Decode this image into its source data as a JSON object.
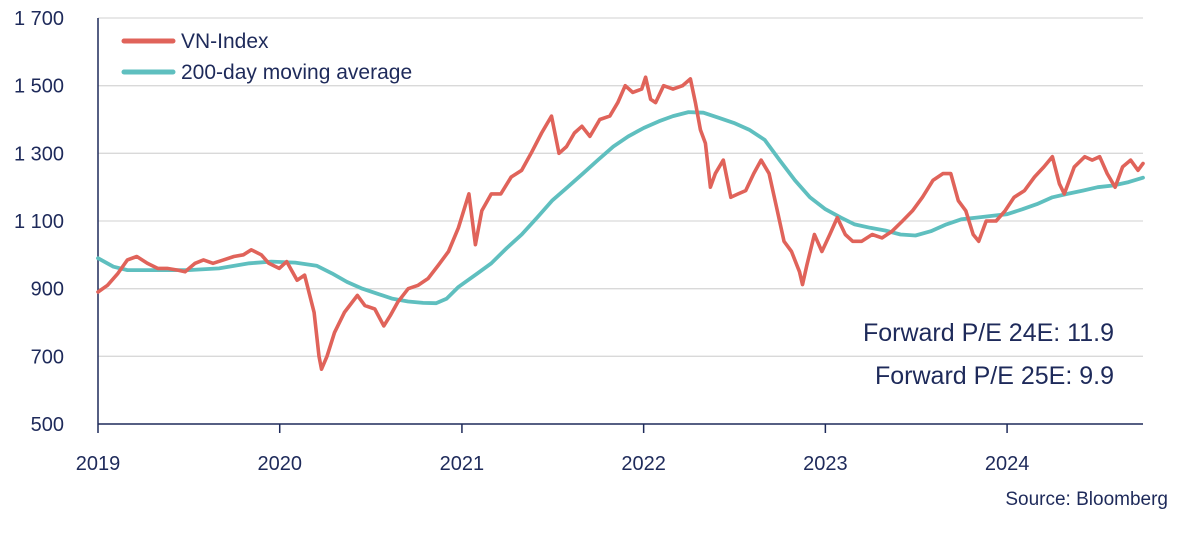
{
  "chart_data": {
    "type": "line",
    "title": "",
    "xlabel": "",
    "ylabel": "",
    "ylim": [
      500,
      1700
    ],
    "xlim": [
      "2019-01-01",
      "2024-09-30"
    ],
    "grid": "horizontal",
    "legend_position": "top-left",
    "y_ticks": [
      {
        "value": 500,
        "label": "500"
      },
      {
        "value": 700,
        "label": "700"
      },
      {
        "value": 900,
        "label": "900"
      },
      {
        "value": 1100,
        "label": "1 100"
      },
      {
        "value": 1300,
        "label": "1 300"
      },
      {
        "value": 1500,
        "label": "1 500"
      },
      {
        "value": 1700,
        "label": "1 700"
      }
    ],
    "x_ticks": [
      {
        "value": "2019-01-01",
        "label": "2019"
      },
      {
        "value": "2020-01-01",
        "label": "2020"
      },
      {
        "value": "2021-01-01",
        "label": "2021"
      },
      {
        "value": "2022-01-01",
        "label": "2022"
      },
      {
        "value": "2023-01-01",
        "label": "2023"
      },
      {
        "value": "2024-01-01",
        "label": "2024"
      }
    ],
    "series": [
      {
        "name": "VN-Index",
        "color": "#e0635a",
        "points": [
          [
            "2019-01-01",
            890
          ],
          [
            "2019-01-20",
            910
          ],
          [
            "2019-02-10",
            945
          ],
          [
            "2019-03-01",
            985
          ],
          [
            "2019-03-20",
            995
          ],
          [
            "2019-04-10",
            975
          ],
          [
            "2019-05-01",
            960
          ],
          [
            "2019-05-20",
            960
          ],
          [
            "2019-06-10",
            955
          ],
          [
            "2019-06-25",
            950
          ],
          [
            "2019-07-15",
            975
          ],
          [
            "2019-08-01",
            985
          ],
          [
            "2019-08-20",
            975
          ],
          [
            "2019-09-10",
            985
          ],
          [
            "2019-10-01",
            995
          ],
          [
            "2019-10-20",
            1000
          ],
          [
            "2019-11-05",
            1015
          ],
          [
            "2019-11-25",
            1000
          ],
          [
            "2019-12-10",
            975
          ],
          [
            "2019-12-31",
            960
          ],
          [
            "2020-01-15",
            980
          ],
          [
            "2020-02-05",
            925
          ],
          [
            "2020-02-20",
            940
          ],
          [
            "2020-03-10",
            830
          ],
          [
            "2020-03-20",
            700
          ],
          [
            "2020-03-25",
            662
          ],
          [
            "2020-04-05",
            700
          ],
          [
            "2020-04-20",
            770
          ],
          [
            "2020-05-10",
            830
          ],
          [
            "2020-06-05",
            880
          ],
          [
            "2020-06-20",
            850
          ],
          [
            "2020-07-10",
            840
          ],
          [
            "2020-07-28",
            790
          ],
          [
            "2020-08-10",
            820
          ],
          [
            "2020-08-25",
            860
          ],
          [
            "2020-09-15",
            900
          ],
          [
            "2020-10-05",
            910
          ],
          [
            "2020-10-25",
            930
          ],
          [
            "2020-11-15",
            970
          ],
          [
            "2020-12-05",
            1010
          ],
          [
            "2020-12-25",
            1080
          ],
          [
            "2021-01-15",
            1180
          ],
          [
            "2021-01-28",
            1030
          ],
          [
            "2021-02-10",
            1130
          ],
          [
            "2021-03-01",
            1180
          ],
          [
            "2021-03-20",
            1180
          ],
          [
            "2021-04-10",
            1230
          ],
          [
            "2021-05-01",
            1250
          ],
          [
            "2021-05-20",
            1300
          ],
          [
            "2021-06-10",
            1360
          ],
          [
            "2021-06-30",
            1410
          ],
          [
            "2021-07-15",
            1300
          ],
          [
            "2021-07-30",
            1320
          ],
          [
            "2021-08-15",
            1360
          ],
          [
            "2021-08-30",
            1380
          ],
          [
            "2021-09-15",
            1350
          ],
          [
            "2021-10-05",
            1400
          ],
          [
            "2021-10-25",
            1410
          ],
          [
            "2021-11-10",
            1450
          ],
          [
            "2021-11-25",
            1500
          ],
          [
            "2021-12-10",
            1480
          ],
          [
            "2021-12-28",
            1490
          ],
          [
            "2022-01-05",
            1525
          ],
          [
            "2022-01-15",
            1460
          ],
          [
            "2022-01-25",
            1450
          ],
          [
            "2022-02-10",
            1500
          ],
          [
            "2022-03-01",
            1490
          ],
          [
            "2022-03-20",
            1500
          ],
          [
            "2022-04-05",
            1520
          ],
          [
            "2022-04-15",
            1450
          ],
          [
            "2022-04-25",
            1370
          ],
          [
            "2022-05-05",
            1330
          ],
          [
            "2022-05-15",
            1200
          ],
          [
            "2022-05-25",
            1240
          ],
          [
            "2022-06-10",
            1280
          ],
          [
            "2022-06-25",
            1170
          ],
          [
            "2022-07-10",
            1180
          ],
          [
            "2022-07-25",
            1190
          ],
          [
            "2022-08-10",
            1240
          ],
          [
            "2022-08-25",
            1280
          ],
          [
            "2022-09-10",
            1240
          ],
          [
            "2022-09-25",
            1140
          ],
          [
            "2022-10-10",
            1040
          ],
          [
            "2022-10-25",
            1010
          ],
          [
            "2022-11-10",
            950
          ],
          [
            "2022-11-16",
            912
          ],
          [
            "2022-11-25",
            970
          ],
          [
            "2022-12-10",
            1060
          ],
          [
            "2022-12-25",
            1010
          ],
          [
            "2023-01-10",
            1060
          ],
          [
            "2023-01-25",
            1110
          ],
          [
            "2023-02-10",
            1060
          ],
          [
            "2023-02-25",
            1040
          ],
          [
            "2023-03-15",
            1040
          ],
          [
            "2023-04-05",
            1060
          ],
          [
            "2023-04-25",
            1050
          ],
          [
            "2023-05-15",
            1070
          ],
          [
            "2023-06-05",
            1100
          ],
          [
            "2023-06-25",
            1130
          ],
          [
            "2023-07-15",
            1170
          ],
          [
            "2023-08-05",
            1220
          ],
          [
            "2023-08-25",
            1240
          ],
          [
            "2023-09-10",
            1240
          ],
          [
            "2023-09-25",
            1160
          ],
          [
            "2023-10-10",
            1130
          ],
          [
            "2023-10-25",
            1060
          ],
          [
            "2023-11-05",
            1040
          ],
          [
            "2023-11-20",
            1100
          ],
          [
            "2023-12-10",
            1100
          ],
          [
            "2023-12-28",
            1130
          ],
          [
            "2024-01-15",
            1170
          ],
          [
            "2024-02-05",
            1190
          ],
          [
            "2024-02-25",
            1230
          ],
          [
            "2024-03-15",
            1260
          ],
          [
            "2024-04-01",
            1290
          ],
          [
            "2024-04-15",
            1210
          ],
          [
            "2024-04-25",
            1180
          ],
          [
            "2024-05-15",
            1260
          ],
          [
            "2024-06-05",
            1290
          ],
          [
            "2024-06-20",
            1280
          ],
          [
            "2024-07-05",
            1290
          ],
          [
            "2024-07-20",
            1240
          ],
          [
            "2024-08-05",
            1200
          ],
          [
            "2024-08-20",
            1260
          ],
          [
            "2024-09-05",
            1280
          ],
          [
            "2024-09-20",
            1250
          ],
          [
            "2024-09-30",
            1270
          ]
        ]
      },
      {
        "name": "200-day moving average",
        "color": "#5fbfbf",
        "points": [
          [
            "2019-01-01",
            990
          ],
          [
            "2019-02-01",
            965
          ],
          [
            "2019-03-01",
            955
          ],
          [
            "2019-05-01",
            955
          ],
          [
            "2019-07-01",
            955
          ],
          [
            "2019-09-01",
            960
          ],
          [
            "2019-11-01",
            975
          ],
          [
            "2019-12-15",
            980
          ],
          [
            "2020-02-01",
            977
          ],
          [
            "2020-03-15",
            968
          ],
          [
            "2020-04-15",
            945
          ],
          [
            "2020-05-15",
            920
          ],
          [
            "2020-06-15",
            900
          ],
          [
            "2020-07-15",
            885
          ],
          [
            "2020-08-15",
            870
          ],
          [
            "2020-09-15",
            862
          ],
          [
            "2020-10-15",
            858
          ],
          [
            "2020-11-10",
            857
          ],
          [
            "2020-12-01",
            870
          ],
          [
            "2020-12-25",
            905
          ],
          [
            "2021-02-01",
            945
          ],
          [
            "2021-03-01",
            975
          ],
          [
            "2021-04-01",
            1020
          ],
          [
            "2021-05-01",
            1060
          ],
          [
            "2021-06-01",
            1110
          ],
          [
            "2021-07-01",
            1160
          ],
          [
            "2021-08-01",
            1200
          ],
          [
            "2021-09-01",
            1240
          ],
          [
            "2021-10-01",
            1280
          ],
          [
            "2021-11-01",
            1320
          ],
          [
            "2021-12-01",
            1350
          ],
          [
            "2022-01-01",
            1375
          ],
          [
            "2022-02-01",
            1395
          ],
          [
            "2022-03-01",
            1410
          ],
          [
            "2022-04-01",
            1422
          ],
          [
            "2022-05-01",
            1420
          ],
          [
            "2022-06-01",
            1405
          ],
          [
            "2022-07-01",
            1390
          ],
          [
            "2022-08-01",
            1370
          ],
          [
            "2022-09-01",
            1340
          ],
          [
            "2022-10-01",
            1280
          ],
          [
            "2022-11-01",
            1220
          ],
          [
            "2022-12-01",
            1170
          ],
          [
            "2023-01-01",
            1135
          ],
          [
            "2023-02-01",
            1110
          ],
          [
            "2023-03-01",
            1090
          ],
          [
            "2023-04-01",
            1080
          ],
          [
            "2023-05-01",
            1072
          ],
          [
            "2023-06-01",
            1060
          ],
          [
            "2023-07-01",
            1057
          ],
          [
            "2023-08-01",
            1070
          ],
          [
            "2023-09-01",
            1090
          ],
          [
            "2023-10-01",
            1105
          ],
          [
            "2023-11-01",
            1110
          ],
          [
            "2023-12-01",
            1115
          ],
          [
            "2024-01-01",
            1120
          ],
          [
            "2024-02-01",
            1135
          ],
          [
            "2024-03-01",
            1150
          ],
          [
            "2024-04-01",
            1170
          ],
          [
            "2024-05-01",
            1180
          ],
          [
            "2024-06-01",
            1190
          ],
          [
            "2024-07-01",
            1200
          ],
          [
            "2024-08-01",
            1205
          ],
          [
            "2024-09-01",
            1215
          ],
          [
            "2024-09-30",
            1228
          ]
        ]
      }
    ],
    "annotations": [
      "Forward P/E 24E: 11.9",
      "Forward P/E 25E: 9.9"
    ],
    "source": "Source: Bloomberg"
  }
}
